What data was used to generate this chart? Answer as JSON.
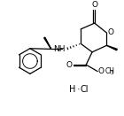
{
  "background": "#ffffff",
  "line_color": "#000000",
  "figsize": [
    1.4,
    1.31
  ],
  "dpi": 100,
  "xlim": [
    0,
    10
  ],
  "ylim": [
    0,
    9.3
  ],
  "lw": 0.9
}
